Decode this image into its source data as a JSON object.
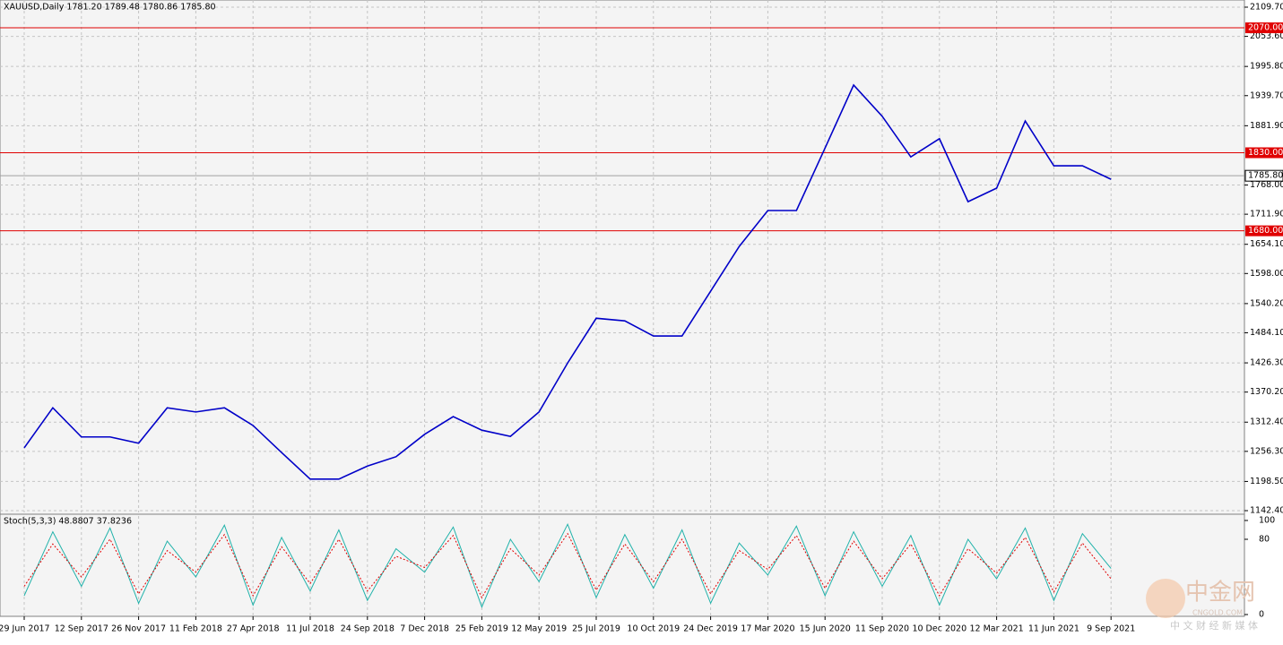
{
  "chart_data": [
    {
      "type": "line",
      "title": "XAUUSD,Daily  1781.20 1789.48 1780.86 1785.80",
      "categories": [
        "29 Jun 2017",
        null,
        "12 Sep 2017",
        null,
        "26 Nov 2017",
        null,
        "11 Feb 2018",
        null,
        "27 Apr 2018",
        null,
        "11 Jul 2018",
        null,
        "24 Sep 2018",
        null,
        "7 Dec 2018",
        null,
        "25 Feb 2019",
        null,
        "12 May 2019",
        null,
        "25 Jul 2019",
        null,
        "10 Oct 2019",
        null,
        "24 Dec 2019",
        null,
        "17 Mar 2020",
        null,
        "15 Jun 2020",
        null,
        "11 Sep 2020",
        null,
        "10 Dec 2020",
        null,
        "12 Mar 2021",
        null,
        "11 Jun 2021",
        null,
        "9 Sep 2021"
      ],
      "series": [
        {
          "color": "#0000c8",
          "values": [
            1263,
            1340,
            1284,
            1284,
            1272,
            1340,
            1332,
            1340,
            1306,
            1254,
            1203,
            1203,
            1228,
            1246,
            1289,
            1323,
            1297,
            1285,
            1332,
            1426,
            1512,
            1507,
            1478,
            1478,
            1564,
            1650,
            1719,
            1719,
            1839,
            1960,
            1900,
            1822,
            1857,
            1736,
            1762,
            1891,
            1805,
            1805,
            1779
          ]
        }
      ],
      "ylim": [
        1139,
        2120
      ],
      "yticks": [
        {
          "value": 2109.7,
          "label": "2109.70"
        },
        {
          "value": 2053.6,
          "label": "2053.60"
        },
        {
          "value": 1995.8,
          "label": "1995.80"
        },
        {
          "value": 1939.7,
          "label": "1939.70"
        },
        {
          "value": 1881.9,
          "label": "1881.90"
        },
        {
          "value": 1768,
          "label": "1768.00"
        },
        {
          "value": 1711.9,
          "label": "1711.90"
        },
        {
          "value": 1654.1,
          "label": "1654.10"
        },
        {
          "value": 1598,
          "label": "1598.00"
        },
        {
          "value": 1540.2,
          "label": "1540.20"
        },
        {
          "value": 1484.1,
          "label": "1484.10"
        },
        {
          "value": 1426.3,
          "label": "1426.30"
        },
        {
          "value": 1370.2,
          "label": "1370.20"
        },
        {
          "value": 1312.4,
          "label": "1312.40"
        },
        {
          "value": 1256.3,
          "label": "1256.30"
        },
        {
          "value": 1198.5,
          "label": "1198.50"
        },
        {
          "value": 1142.4,
          "label": "1142.40"
        }
      ],
      "levels": [
        {
          "value": 2070,
          "label": "2070.00"
        },
        {
          "value": 1830,
          "label": "1830.00"
        },
        {
          "value": 1680,
          "label": "1680.00"
        }
      ],
      "level_color": "#e00000",
      "current_price": {
        "value": 1785.8,
        "label": "1785.80"
      },
      "grid": true
    },
    {
      "type": "line",
      "title": "Stoch(5,3,3) 48.8807 37.8236",
      "series": [
        {
          "color": "#20b2aa",
          "values": [
            20,
            88,
            30,
            92,
            12,
            78,
            40,
            95,
            10,
            82,
            25,
            90,
            15,
            70,
            45,
            93,
            8,
            80,
            35,
            96,
            18,
            85,
            28,
            90,
            12,
            76,
            42,
            94,
            20,
            88,
            30,
            84,
            10,
            80,
            38,
            92,
            15,
            86,
            49
          ]
        },
        {
          "color": "#e00000",
          "values": [
            30,
            75,
            40,
            80,
            22,
            68,
            45,
            85,
            20,
            72,
            33,
            80,
            25,
            62,
            50,
            84,
            18,
            70,
            42,
            86,
            26,
            75,
            35,
            80,
            22,
            68,
            48,
            84,
            28,
            78,
            38,
            75,
            20,
            70,
            44,
            82,
            24,
            76,
            38
          ]
        }
      ],
      "ylim": [
        0,
        100
      ],
      "yticks": [
        0,
        80,
        100
      ]
    },
    {
      "watermark": {
        "logo": "中金网",
        "site": "CNGOLD.COM",
        "slogan": "中 文 财 经 新 媒 体"
      }
    }
  ]
}
